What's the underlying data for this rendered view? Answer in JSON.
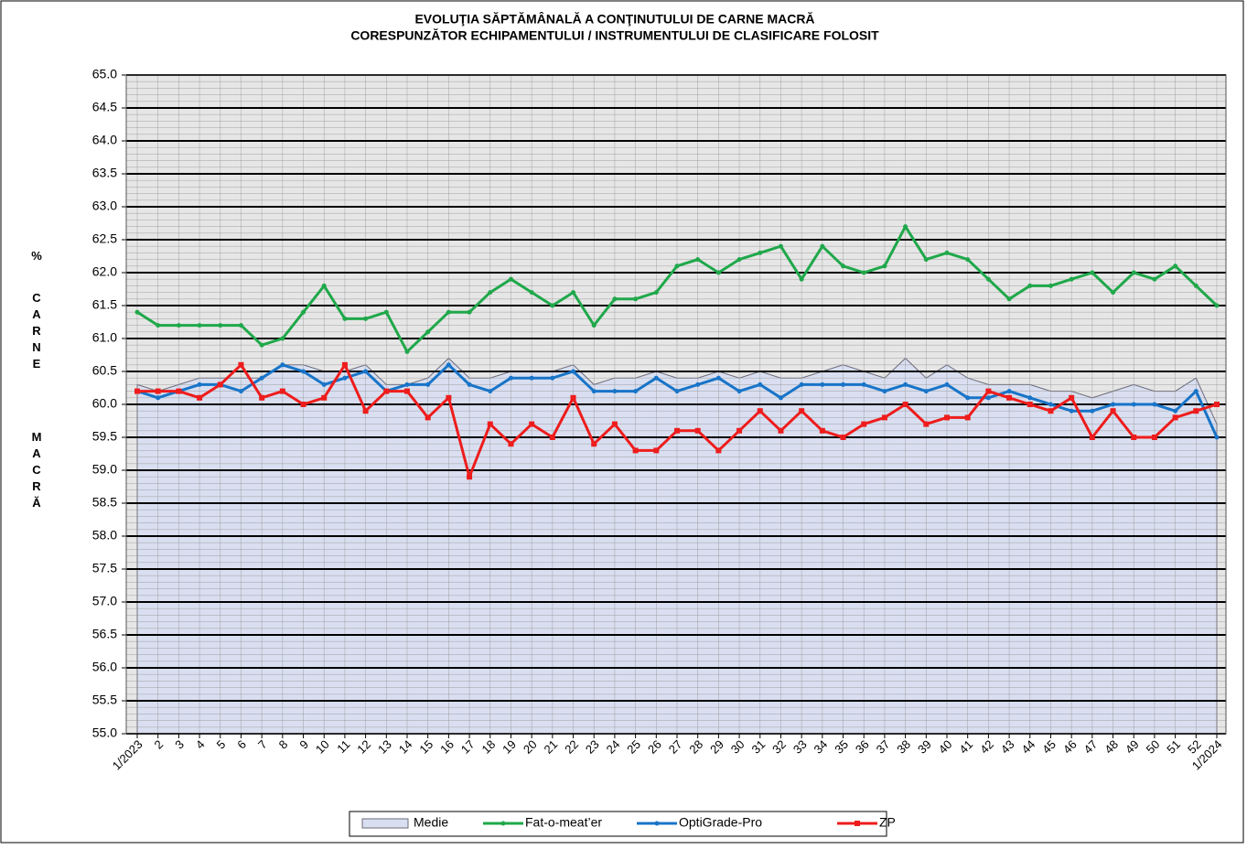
{
  "chart_data": {
    "type": "line",
    "title": [
      "EVOLUŢIA SĂPTĂMÂNALĂ  A CONŢINUTULUI DE CARNE MACRĂ",
      "CORESPUNZĂTOR   ECHIPAMENTULUI / INSTRUMENTULUI DE CLASIFICARE FOLOSIT"
    ],
    "y_label": [
      "%",
      "CARNE",
      "MACRĂ"
    ],
    "categories": [
      "1/2023",
      "2",
      "3",
      "4",
      "5",
      "6",
      "7",
      "8",
      "9",
      "10",
      "11",
      "12",
      "13",
      "14",
      "15",
      "16",
      "17",
      "18",
      "19",
      "20",
      "21",
      "22",
      "23",
      "24",
      "25",
      "26",
      "27",
      "28",
      "29",
      "30",
      "31",
      "32",
      "33",
      "34",
      "35",
      "36",
      "37",
      "38",
      "39",
      "40",
      "41",
      "42",
      "43",
      "44",
      "45",
      "46",
      "47",
      "48",
      "49",
      "50",
      "51",
      "52",
      "1/2024"
    ],
    "ylim": [
      55,
      65
    ],
    "yticks": [
      {
        "value": 55,
        "label": "55.0"
      },
      {
        "value": 55.5,
        "label": "55.5"
      },
      {
        "value": 56,
        "label": "56.0"
      },
      {
        "value": 56.5,
        "label": "56.5"
      },
      {
        "value": 57,
        "label": "57.0"
      },
      {
        "value": 57.5,
        "label": "57.5"
      },
      {
        "value": 58,
        "label": "58.0"
      },
      {
        "value": 58.5,
        "label": "58.5"
      },
      {
        "value": 59,
        "label": "59.0"
      },
      {
        "value": 59.5,
        "label": "59.5"
      },
      {
        "value": 60,
        "label": "60.0"
      },
      {
        "value": 60.5,
        "label": "60.5"
      },
      {
        "value": 61,
        "label": "61.0"
      },
      {
        "value": 61.5,
        "label": "61.5"
      },
      {
        "value": 62,
        "label": "62.0"
      },
      {
        "value": 62.5,
        "label": "62.5"
      },
      {
        "value": 63,
        "label": "63.0"
      },
      {
        "value": 63.5,
        "label": "63.5"
      },
      {
        "value": 64,
        "label": "64.0"
      },
      {
        "value": 64.5,
        "label": "64.5"
      },
      {
        "value": 65,
        "label": "65.0"
      }
    ],
    "minor_grid": 0.1,
    "grid": true,
    "legend": "bottom",
    "series": [
      {
        "name": "Medie",
        "kind": "area",
        "color": "#d9dff0",
        "values": [
          60.3,
          60.2,
          60.3,
          60.4,
          60.4,
          60.4,
          60.4,
          60.6,
          60.6,
          60.5,
          60.5,
          60.6,
          60.3,
          60.3,
          60.4,
          60.7,
          60.4,
          60.4,
          60.5,
          60.5,
          60.5,
          60.6,
          60.3,
          60.4,
          60.4,
          60.5,
          60.4,
          60.4,
          60.5,
          60.4,
          60.5,
          60.4,
          60.4,
          60.5,
          60.6,
          60.5,
          60.4,
          60.7,
          60.4,
          60.6,
          60.4,
          60.3,
          60.3,
          60.3,
          60.2,
          60.2,
          60.1,
          60.2,
          60.3,
          60.2,
          60.2,
          60.4,
          59.7
        ]
      },
      {
        "name": "Fat-o-meat’er",
        "kind": "line",
        "color": "#1fa84a",
        "values": [
          61.4,
          61.2,
          61.2,
          61.2,
          61.2,
          61.2,
          60.9,
          61.0,
          61.4,
          61.8,
          61.3,
          61.3,
          61.4,
          60.8,
          61.1,
          61.4,
          61.4,
          61.7,
          61.9,
          61.7,
          61.5,
          61.7,
          61.2,
          61.6,
          61.6,
          61.7,
          62.1,
          62.2,
          62.0,
          62.2,
          62.3,
          62.4,
          61.9,
          62.4,
          62.1,
          62.0,
          62.1,
          62.7,
          62.2,
          62.3,
          62.2,
          61.9,
          61.6,
          61.8,
          61.8,
          61.9,
          62.0,
          61.7,
          62.0,
          61.9,
          62.1,
          61.8,
          61.5
        ]
      },
      {
        "name": "OptiGrade-Pro",
        "kind": "line",
        "color": "#1874c8",
        "values": [
          60.2,
          60.1,
          60.2,
          60.3,
          60.3,
          60.2,
          60.4,
          60.6,
          60.5,
          60.3,
          60.4,
          60.5,
          60.2,
          60.3,
          60.3,
          60.6,
          60.3,
          60.2,
          60.4,
          60.4,
          60.4,
          60.5,
          60.2,
          60.2,
          60.2,
          60.4,
          60.2,
          60.3,
          60.4,
          60.2,
          60.3,
          60.1,
          60.3,
          60.3,
          60.3,
          60.3,
          60.2,
          60.3,
          60.2,
          60.3,
          60.1,
          60.1,
          60.2,
          60.1,
          60.0,
          59.9,
          59.9,
          60.0,
          60.0,
          60.0,
          59.9,
          60.2,
          59.5
        ]
      },
      {
        "name": "ZP",
        "kind": "line",
        "color": "#ee1c1c",
        "values": [
          60.2,
          60.2,
          60.2,
          60.1,
          60.3,
          60.6,
          60.1,
          60.2,
          60.0,
          60.1,
          60.6,
          59.9,
          60.2,
          60.2,
          59.8,
          60.1,
          58.9,
          59.7,
          59.4,
          59.7,
          59.5,
          60.1,
          59.4,
          59.7,
          59.3,
          59.3,
          59.6,
          59.6,
          59.3,
          59.6,
          59.9,
          59.6,
          59.9,
          59.6,
          59.5,
          59.7,
          59.8,
          60.0,
          59.7,
          59.8,
          59.8,
          60.2,
          60.1,
          60.0,
          59.9,
          60.1,
          59.5,
          59.9,
          59.5,
          59.5,
          59.8,
          59.9,
          60.0
        ]
      }
    ]
  }
}
